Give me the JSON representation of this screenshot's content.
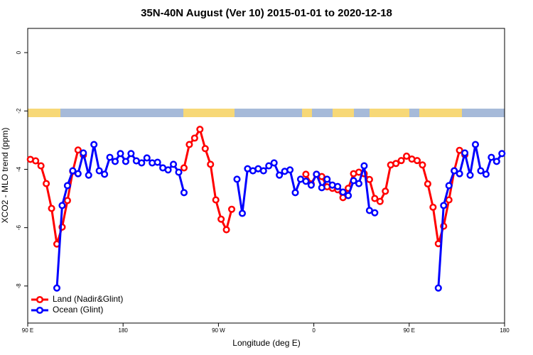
{
  "chart_data": {
    "type": "line",
    "title": "35N-40N August (Ver 10)   2015-01-01 to 2020-12-18",
    "x_label": "Longitude (deg E)",
    "y_label": "XCO2 - MLO trend (ppm)",
    "xlim": [
      90,
      540
    ],
    "ylim": [
      -9.27,
      0.83
    ],
    "xticks": [
      {
        "value": 90,
        "label": "90 E"
      },
      180,
      {
        "value": 270,
        "label": "90 W"
      },
      {
        "value": 360,
        "label": "0"
      },
      {
        "value": 450,
        "label": "90 E"
      },
      {
        "value": 540,
        "label": "180"
      }
    ],
    "yticks": [
      0,
      -2,
      -4,
      -6,
      -8
    ],
    "legend": "bottom-left",
    "series": [
      {
        "name": "Land (Nadir&Glint)",
        "color": "#ff0000",
        "x": [
          92.5,
          97.5,
          102.5,
          107.5,
          112.5,
          117.5,
          122.5,
          127.5,
          132.5,
          137.5,
          142.5,
          147.5,
          237.5,
          242.5,
          247.5,
          252.5,
          257.5,
          262.5,
          267.5,
          272.5,
          277.5,
          282.5,
          287.5,
          352.5,
          357.5,
          362.5,
          367.5,
          372.5,
          377.5,
          382.5,
          387.5,
          392.5,
          397.5,
          402.5,
          407.5,
          412.5,
          417.5,
          422.5,
          427.5,
          432.5,
          437.5,
          442.5,
          447.5,
          452.5,
          457.5,
          462.5,
          467.5,
          472.5,
          477.5,
          482.5,
          487.5,
          492.5,
          497.5,
          502.5
        ],
        "values": [
          -3.66,
          -3.71,
          -3.88,
          -4.49,
          -5.34,
          -6.56,
          -5.98,
          -5.07,
          -4.07,
          -3.34,
          -3.51,
          null,
          -3.95,
          -3.15,
          -2.93,
          -2.63,
          -3.29,
          -3.83,
          -5.05,
          -5.71,
          -6.07,
          -5.37,
          null,
          -4.17,
          -4.5,
          -4.17,
          -4.25,
          -4.6,
          -4.65,
          -4.7,
          -4.97,
          -4.65,
          -4.15,
          -4.1,
          -4.15,
          -4.35,
          -5.0,
          -5.1,
          -4.75,
          -3.85,
          -3.8,
          -3.7,
          -3.55,
          -3.65,
          -3.7,
          -3.85,
          -4.5,
          -5.3,
          -6.55,
          -5.95,
          -5.05,
          -4.05,
          -3.35,
          -3.5
        ]
      },
      {
        "name": "Ocean (Glint)",
        "color": "#0000ff",
        "x": [
          117.5,
          122.5,
          127.5,
          132.5,
          137.5,
          142.5,
          147.5,
          152.5,
          157.5,
          162.5,
          167.5,
          172.5,
          177.5,
          182.5,
          187.5,
          192.5,
          197.5,
          202.5,
          207.5,
          212.5,
          217.5,
          222.5,
          227.5,
          232.5,
          237.5,
          262.5,
          287.5,
          292.5,
          297.5,
          302.5,
          307.5,
          312.5,
          317.5,
          322.5,
          327.5,
          332.5,
          337.5,
          342.5,
          347.5,
          352.5,
          357.5,
          362.5,
          367.5,
          372.5,
          377.5,
          382.5,
          387.5,
          392.5,
          397.5,
          402.5,
          407.5,
          412.5,
          417.5,
          447.5,
          477.5,
          482.5,
          487.5,
          492.5,
          497.5,
          502.5,
          507.5,
          512.5,
          517.5,
          522.5,
          527.5,
          532.5,
          537.5
        ],
        "values": [
          -8.07,
          -5.24,
          -4.56,
          -4.05,
          -4.15,
          -3.44,
          -4.2,
          -3.15,
          -4.05,
          -4.17,
          -3.59,
          -3.73,
          -3.46,
          -3.73,
          -3.46,
          -3.71,
          -3.78,
          -3.61,
          -3.78,
          -3.76,
          -3.95,
          -4.02,
          -3.83,
          -4.1,
          -4.8,
          null,
          -4.34,
          -5.51,
          -3.98,
          -4.05,
          -3.98,
          -4.05,
          -3.88,
          -3.78,
          -4.2,
          -4.07,
          -4.02,
          -4.8,
          -4.34,
          -4.41,
          -4.54,
          -4.17,
          -4.63,
          -4.34,
          -4.54,
          -4.59,
          -4.78,
          -4.9,
          -4.39,
          -4.49,
          -3.88,
          -5.41,
          -5.49,
          null,
          -8.07,
          -5.24,
          -4.56,
          -4.05,
          -4.15,
          -3.44,
          -4.2,
          -3.15,
          -4.05,
          -4.17,
          -3.59,
          -3.73,
          -3.46
        ]
      }
    ]
  }
}
